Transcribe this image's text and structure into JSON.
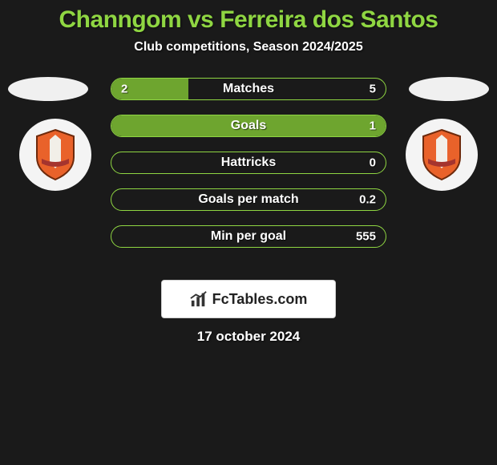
{
  "background_color": "#1a1a1a",
  "title": {
    "text": "Channgom vs Ferreira dos Santos",
    "color": "#8fd642",
    "fontsize": 30
  },
  "subtitle": {
    "text": "Club competitions, Season 2024/2025",
    "color": "#ffffff",
    "fontsize": 16
  },
  "avatar_oval_color": "#f0f0f0",
  "badge_shield": {
    "fill": "#e9622a",
    "stroke": "#6e2a0c",
    "inner": "#f2efe8",
    "ribbon": "#a5342e"
  },
  "stats": {
    "border_color": "#8fd642",
    "fill_color": "#6ea52f",
    "label_color": "#ffffff",
    "value_color": "#ffffff",
    "label_fontsize": 16,
    "value_fontsize": 15,
    "rows": [
      {
        "label": "Matches",
        "left": "2",
        "right": "5",
        "fill_pct": 28
      },
      {
        "label": "Goals",
        "left": "",
        "right": "1",
        "fill_pct": 100
      },
      {
        "label": "Hattricks",
        "left": "",
        "right": "0",
        "fill_pct": 0
      },
      {
        "label": "Goals per match",
        "left": "",
        "right": "0.2",
        "fill_pct": 0
      },
      {
        "label": "Min per goal",
        "left": "",
        "right": "555",
        "fill_pct": 0
      }
    ]
  },
  "footer": {
    "brand": "FcTables.com",
    "date": "17 october 2024",
    "date_color": "#ffffff",
    "date_fontsize": 17
  }
}
